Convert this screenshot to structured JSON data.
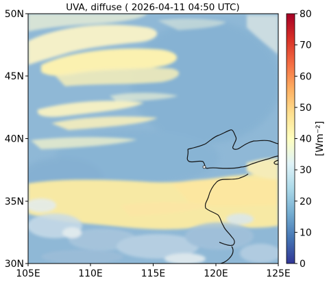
{
  "figure": {
    "title": "UVA, diffuse ( 2026-04-11 04:50 UTC)"
  },
  "map": {
    "lon_range": [
      105,
      125
    ],
    "lat_range": [
      30,
      50
    ],
    "x_ticks": [
      "105E",
      "110E",
      "115E",
      "120E",
      "125E"
    ],
    "y_ticks": [
      "30N",
      "35N",
      "40N",
      "45N",
      "50N"
    ],
    "base_color": "#8fb8d6",
    "colormap": "RdYlBu_r"
  },
  "colorbar": {
    "label": "[Wm⁻²]",
    "range": [
      0,
      80
    ],
    "ticks": [
      "0",
      "10",
      "20",
      "30",
      "40",
      "50",
      "60",
      "70",
      "80"
    ],
    "colors": [
      "#313695",
      "#4575b4",
      "#74add1",
      "#abd9e9",
      "#e0f3f8",
      "#ffffbf",
      "#fee090",
      "#fdae61",
      "#f46d43",
      "#d73027",
      "#a50026"
    ]
  }
}
